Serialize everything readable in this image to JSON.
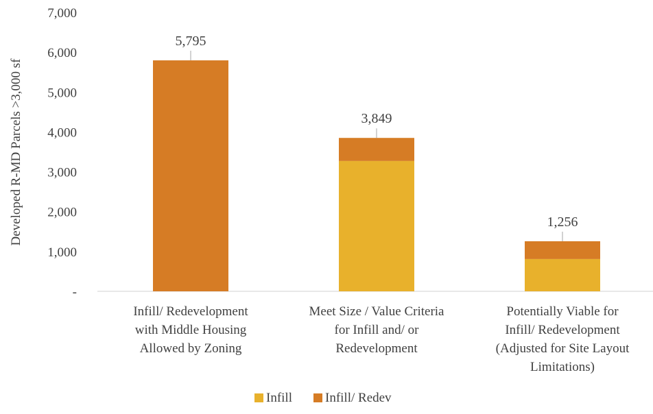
{
  "chart_data": {
    "type": "bar",
    "stacked": true,
    "title": "",
    "xlabel": "",
    "ylabel": "Developed R-MD Parcels >3,000 sf",
    "ylim": [
      0,
      7000
    ],
    "yticks": [
      0,
      1000,
      2000,
      3000,
      4000,
      5000,
      6000,
      7000
    ],
    "ytick_labels": [
      "-",
      "1,000",
      "2,000",
      "3,000",
      "4,000",
      "5,000",
      "6,000",
      "7,000"
    ],
    "categories": [
      [
        "Infill/ Redevelopment",
        "with Middle Housing",
        "Allowed by Zoning"
      ],
      [
        "Meet Size / Value Criteria",
        "for Infill and/ or",
        "Redevelopment"
      ],
      [
        "Potentially Viable for",
        "Infill/ Redevelopment",
        "(Adjusted for Site Layout",
        "Limitations)"
      ]
    ],
    "series": [
      {
        "name": "Infill",
        "color": "#e8b12c",
        "values": [
          0,
          3270,
          810
        ]
      },
      {
        "name": "Infill/ Redev",
        "color": "#d67c25",
        "values": [
          5795,
          579,
          446
        ]
      }
    ],
    "totals": [
      5795,
      3849,
      1256
    ],
    "total_labels": [
      "5,795",
      "3,849",
      "1,256"
    ],
    "legend_position": "bottom",
    "grid": false
  }
}
